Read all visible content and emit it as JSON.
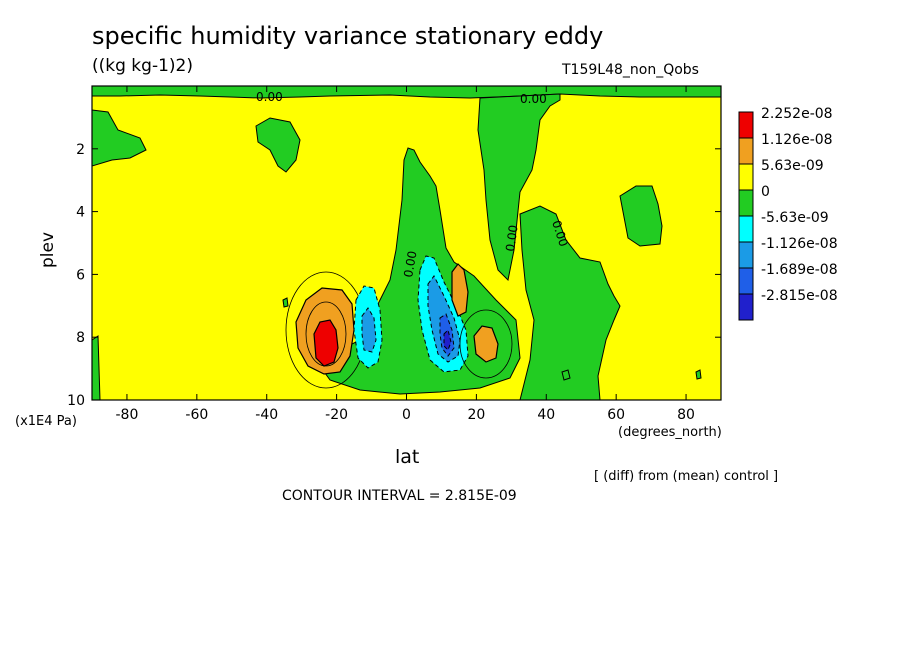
{
  "title": "specific humidity variance stationary eddy",
  "units": "((kg kg-1)2)",
  "run_name": "T159L48_non_Qobs",
  "comparison_note": "[ (diff) from (mean) control ]",
  "contour_interval_text": "CONTOUR INTERVAL = 2.815E-09",
  "chart_data": {
    "type": "heatmap",
    "title": "specific humidity variance stationary eddy",
    "xlabel": "lat",
    "xunit": "(degrees_north)",
    "ylabel": "plev",
    "yunit": "(x1E4 Pa)",
    "xlim": [
      -90,
      90
    ],
    "ylim": [
      10,
      0
    ],
    "x_ticks": [
      "-80",
      "-60",
      "-40",
      "-20",
      "0",
      "20",
      "40",
      "60",
      "80"
    ],
    "y_ticks": [
      "2",
      "4",
      "6",
      "8",
      "10"
    ],
    "contour_interval": 2.815e-09,
    "colorbar": [
      {
        "label": "2.252e-08",
        "color": "#ee0000"
      },
      {
        "label": "1.126e-08",
        "color": "#f0a020"
      },
      {
        "label": "5.63e-09",
        "color": "#ffff00"
      },
      {
        "label": "0",
        "color": "#22cc22"
      },
      {
        "label": "-5.63e-09",
        "color": "#00ffff"
      },
      {
        "label": "-1.126e-08",
        "color": "#1b9be6"
      },
      {
        "label": "-1.689e-08",
        "color": "#1f5fe8"
      },
      {
        "label": "-2.815e-08",
        "color": "#2020cc"
      }
    ],
    "contour_labels": [
      "0.00",
      "0.00",
      "0.00",
      "0.00",
      "0.00"
    ],
    "features": [
      {
        "name": "positive max near 23S",
        "lat": -23,
        "plev": 8.4,
        "level": 2.252e-08
      },
      {
        "name": "negative min near 12S",
        "lat": -12,
        "plev": 8.2,
        "level": -1.126e-08
      },
      {
        "name": "negative min near 12N",
        "lat": 12,
        "plev": 8.4,
        "level": -2.815e-08
      },
      {
        "name": "positive near 16N",
        "lat": 16,
        "plev": 6.7,
        "level": 5.63e-09
      },
      {
        "name": "positive near 23N",
        "lat": 23,
        "plev": 8.3,
        "level": 1.126e-08
      }
    ],
    "grid": false,
    "legend": "colorbar right"
  }
}
